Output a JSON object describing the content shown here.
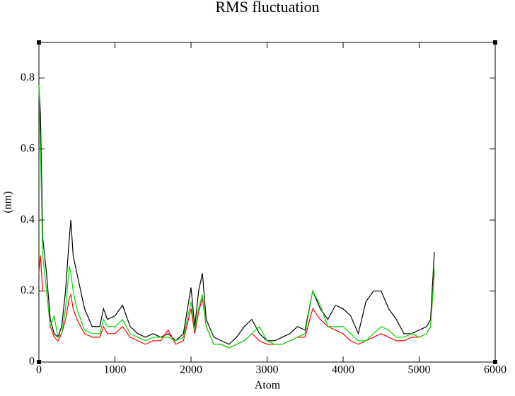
{
  "chart_data": {
    "type": "line",
    "title": "RMS fluctuation",
    "x_label": "Atom",
    "y_label": "(nm)",
    "x": [
      0,
      20,
      50,
      100,
      150,
      200,
      250,
      300,
      350,
      400,
      420,
      450,
      500,
      600,
      700,
      800,
      850,
      900,
      1000,
      1100,
      1200,
      1300,
      1400,
      1500,
      1600,
      1700,
      1800,
      1900,
      2000,
      2050,
      2100,
      2150,
      2200,
      2300,
      2400,
      2500,
      2600,
      2700,
      2800,
      2900,
      3000,
      3100,
      3200,
      3300,
      3400,
      3500,
      3600,
      3700,
      3800,
      3900,
      4000,
      4100,
      4200,
      4300,
      4400,
      4500,
      4600,
      4700,
      4800,
      4900,
      5000,
      5100,
      5150,
      5200
    ],
    "series": [
      {
        "color": "#000000",
        "values": [
          0.78,
          0.7,
          0.35,
          0.25,
          0.12,
          0.08,
          0.07,
          0.1,
          0.2,
          0.35,
          0.4,
          0.3,
          0.25,
          0.15,
          0.1,
          0.1,
          0.15,
          0.12,
          0.13,
          0.16,
          0.1,
          0.08,
          0.07,
          0.08,
          0.07,
          0.08,
          0.06,
          0.08,
          0.21,
          0.1,
          0.2,
          0.25,
          0.12,
          0.07,
          0.06,
          0.05,
          0.07,
          0.1,
          0.12,
          0.08,
          0.06,
          0.06,
          0.07,
          0.08,
          0.1,
          0.09,
          0.2,
          0.15,
          0.12,
          0.16,
          0.15,
          0.13,
          0.08,
          0.17,
          0.2,
          0.2,
          0.15,
          0.12,
          0.08,
          0.08,
          0.09,
          0.1,
          0.12,
          0.31
        ]
      },
      {
        "color": "#ff0000",
        "values": [
          0.25,
          0.3,
          0.2,
          0.2,
          0.1,
          0.07,
          0.06,
          0.08,
          0.12,
          0.18,
          0.19,
          0.15,
          0.12,
          0.08,
          0.07,
          0.07,
          0.1,
          0.08,
          0.08,
          0.1,
          0.07,
          0.06,
          0.05,
          0.06,
          0.06,
          0.09,
          0.05,
          0.06,
          0.15,
          0.08,
          0.14,
          0.18,
          0.1,
          0.05,
          0.05,
          0.04,
          0.05,
          0.06,
          0.08,
          0.06,
          0.05,
          0.05,
          0.05,
          0.06,
          0.07,
          0.07,
          0.15,
          0.12,
          0.1,
          0.09,
          0.08,
          0.06,
          0.05,
          0.06,
          0.07,
          0.08,
          0.07,
          0.06,
          0.06,
          0.07,
          0.07,
          0.08,
          0.1,
          0.25
        ]
      },
      {
        "color": "#00dd00",
        "values": [
          0.78,
          0.6,
          0.3,
          0.2,
          0.1,
          0.13,
          0.07,
          0.08,
          0.15,
          0.27,
          0.25,
          0.2,
          0.15,
          0.09,
          0.08,
          0.08,
          0.12,
          0.1,
          0.1,
          0.12,
          0.08,
          0.07,
          0.06,
          0.07,
          0.07,
          0.07,
          0.06,
          0.07,
          0.17,
          0.09,
          0.15,
          0.19,
          0.1,
          0.05,
          0.05,
          0.04,
          0.05,
          0.06,
          0.08,
          0.1,
          0.06,
          0.05,
          0.05,
          0.06,
          0.07,
          0.08,
          0.2,
          0.16,
          0.1,
          0.1,
          0.1,
          0.08,
          0.06,
          0.06,
          0.08,
          0.1,
          0.09,
          0.07,
          0.07,
          0.08,
          0.07,
          0.08,
          0.1,
          0.26
        ]
      }
    ],
    "xlim": [
      0,
      6000
    ],
    "xticks": [
      0,
      1000,
      2000,
      3000,
      4000,
      5000,
      6000
    ],
    "ylim": [
      0,
      0.9
    ],
    "yticks": [
      0,
      0.2,
      0.4,
      0.6,
      0.8
    ]
  }
}
